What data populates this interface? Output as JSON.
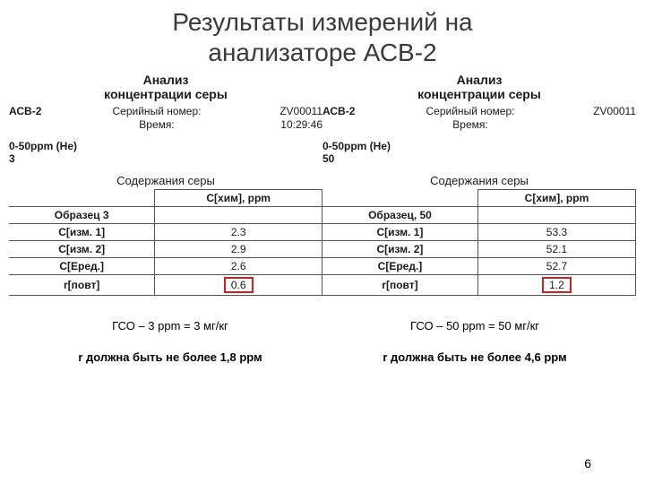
{
  "title_line1": "Результаты измерений на",
  "title_line2": "анализаторе АСВ-2",
  "left": {
    "hdr1": "Анализ",
    "hdr2": "концентрации серы",
    "device": "АСВ-2",
    "serial_label": "Серийный номер:",
    "serial_val": "ZV00011",
    "time_label": "Время:",
    "time_val": "10:29:46",
    "range_label": "0-50ppm (He)",
    "range_val": "3",
    "sub_title": "Содержания серы",
    "col_header": "С[хим], ppm",
    "rows": [
      {
        "label": "Образец 3",
        "val": ""
      },
      {
        "label": "С[изм. 1]",
        "val": "2.3"
      },
      {
        "label": "С[изм. 2]",
        "val": "2.9"
      },
      {
        "label": "С[Еред.]",
        "val": "2.6"
      },
      {
        "label": "r[повт]",
        "val": "0.6"
      }
    ],
    "caption": "ГСО – 3 ppm  = 3 мг/кг",
    "r_note": "r должна быть не более 1,8 ррм"
  },
  "right": {
    "hdr1": "Анализ",
    "hdr2": "концентрации серы",
    "device": "АСВ-2",
    "serial_label": "Серийный номер:",
    "serial_val": "ZV00011",
    "time_label": "Время:",
    "time_val": "",
    "range_label": "0-50ppm (He)",
    "range_val": "50",
    "sub_title": "Содержания серы",
    "col_header": "С[хим], ppm",
    "rows": [
      {
        "label": "Образец, 50",
        "val": ""
      },
      {
        "label": "С[изм. 1]",
        "val": "53.3"
      },
      {
        "label": "С[изм. 2]",
        "val": "52.1"
      },
      {
        "label": "С[Еред.]",
        "val": "52.7"
      },
      {
        "label": "r[повт]",
        "val": "1.2"
      }
    ],
    "caption": "ГСО – 50 ppm = 50 мг/кг",
    "r_note": "r должна быть не более 4,6 ррм"
  },
  "page_number": "6",
  "highlight_color": "#d02020"
}
